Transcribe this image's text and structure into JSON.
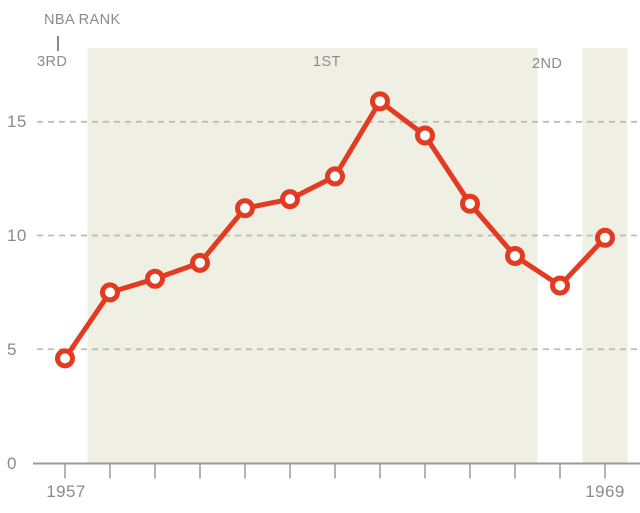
{
  "chart_data": {
    "type": "line",
    "title": "NBA RANK",
    "annotation": {
      "title": "NBA RANK",
      "pointer_rank": "3RD"
    },
    "band_labels": {
      "first": "1ST",
      "second": "2ND"
    },
    "x": [
      1957,
      1958,
      1959,
      1960,
      1961,
      1962,
      1963,
      1964,
      1965,
      1966,
      1967,
      1968,
      1969
    ],
    "values": [
      4.6,
      7.5,
      8.1,
      8.8,
      11.2,
      11.6,
      12.6,
      15.9,
      14.4,
      11.4,
      9.1,
      7.8,
      9.9
    ],
    "ylim": [
      0,
      17.5
    ],
    "ytick_values": [
      0,
      5,
      10,
      15
    ],
    "ytick_labels": [
      "0",
      "5",
      "10",
      "15"
    ],
    "xtick_labels": {
      "first": "1957",
      "last": "1969"
    },
    "rank_bands": [
      {
        "label": "3RD",
        "from": 1957,
        "to": 1957,
        "shaded": false
      },
      {
        "label": "1ST",
        "from": 1958,
        "to": 1967,
        "shaded": true
      },
      {
        "label": "2ND",
        "from": 1968,
        "to": 1968,
        "shaded": false
      },
      {
        "label": "",
        "from": 1969,
        "to": 1969,
        "shaded": true
      }
    ],
    "grid": "horizontal-dashed",
    "legend": "none",
    "colors": {
      "line": "#e23b21",
      "marker_fill": "#ffffff",
      "band": "#f0efe4",
      "label_text": "#8b8b8b",
      "axis": "#9a9a9a",
      "grid": "#bdbdb4"
    }
  }
}
